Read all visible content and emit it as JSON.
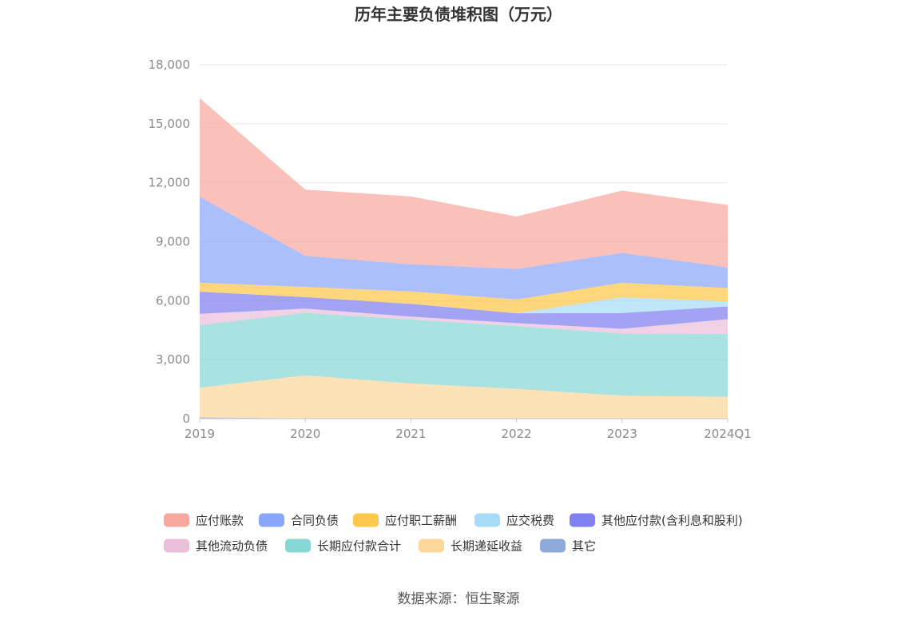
{
  "chart_data": {
    "type": "area",
    "title": "历年主要负债堆积图（万元）",
    "source": "数据来源：恒生聚源",
    "categories": [
      "2019",
      "2020",
      "2021",
      "2022",
      "2023",
      "2024Q1"
    ],
    "y_ticks": [
      "0",
      "3,000",
      "6,000",
      "9,000",
      "12,000",
      "15,000",
      "18,000"
    ],
    "ylim": [
      0,
      18000
    ],
    "stacked": true,
    "grid": true,
    "legend_position": "bottom",
    "series": [
      {
        "name": "其它",
        "color": "#8fa9d9",
        "values": [
          60,
          20,
          10,
          10,
          10,
          10
        ]
      },
      {
        "name": "长期递延收益",
        "color": "#fcd79b",
        "values": [
          1520,
          2180,
          1780,
          1500,
          1160,
          1100
        ]
      },
      {
        "name": "长期应付款合计",
        "color": "#86d7d6",
        "values": [
          3180,
          3180,
          3250,
          3200,
          3150,
          3200
        ]
      },
      {
        "name": "其他流动负债",
        "color": "#eabfdc",
        "values": [
          570,
          220,
          150,
          150,
          250,
          750
        ]
      },
      {
        "name": "其他应付款(含利息和股利)",
        "color": "#8080f0",
        "values": [
          1130,
          580,
          650,
          500,
          800,
          650
        ]
      },
      {
        "name": "应交税费",
        "color": "#a8dcf6",
        "values": [
          0,
          0,
          0,
          0,
          800,
          250
        ]
      },
      {
        "name": "应付职工薪酬",
        "color": "#fdc84b",
        "values": [
          450,
          520,
          630,
          700,
          740,
          680
        ]
      },
      {
        "name": "合同负债",
        "color": "#8aa6fa",
        "values": [
          4380,
          1580,
          1380,
          1550,
          1520,
          1050
        ]
      },
      {
        "name": "应付账款",
        "color": "#f9a8a0",
        "values": [
          5010,
          3370,
          3450,
          2670,
          3170,
          3180
        ]
      }
    ],
    "legend_order": [
      "应付账款",
      "合同负债",
      "应付职工薪酬",
      "应交税费",
      "其他应付款(含利息和股利)",
      "其他流动负债",
      "长期应付款合计",
      "长期递延收益",
      "其它"
    ]
  }
}
